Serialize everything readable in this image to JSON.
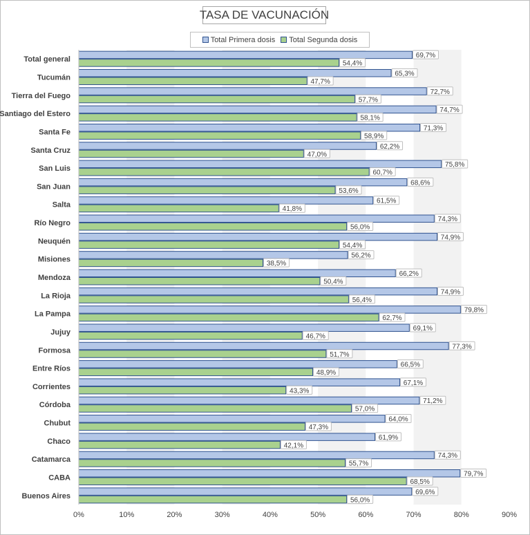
{
  "chart_data": {
    "type": "bar",
    "orientation": "horizontal",
    "title": "TASA DE VACUNACIÓN",
    "categories": [
      "Total general",
      "Tucumán",
      "Tierra del Fuego",
      "Santiago del Estero",
      "Santa Fe",
      "Santa Cruz",
      "San Luis",
      "San Juan",
      "Salta",
      "Río Negro",
      "Neuquén",
      "Misiones",
      "Mendoza",
      "La Rioja",
      "La Pampa",
      "Jujuy",
      "Formosa",
      "Entre Ríos",
      "Corrientes",
      "Córdoba",
      "Chubut",
      "Chaco",
      "Catamarca",
      "CABA",
      "Buenos Aires"
    ],
    "series": [
      {
        "name": "Total Primera dosis",
        "color": "#b4c7e7",
        "border": "#2f528f",
        "values": [
          69.7,
          65.3,
          72.7,
          74.7,
          71.3,
          62.2,
          75.8,
          68.6,
          61.5,
          74.3,
          74.9,
          56.2,
          66.2,
          74.9,
          79.8,
          69.1,
          77.3,
          66.5,
          67.1,
          71.2,
          64.0,
          61.9,
          74.3,
          79.7,
          69.6
        ],
        "labels": [
          "69,7%",
          "65,3%",
          "72,7%",
          "74,7%",
          "71,3%",
          "62,2%",
          "75,8%",
          "68,6%",
          "61,5%",
          "74,3%",
          "74,9%",
          "56,2%",
          "66,2%",
          "74,9%",
          "79,8%",
          "69,1%",
          "77,3%",
          "66,5%",
          "67,1%",
          "71,2%",
          "64,0%",
          "61,9%",
          "74,3%",
          "79,7%",
          "69,6%"
        ]
      },
      {
        "name": "Total Segunda dosis",
        "color": "#a9d18e",
        "border": "#2f528f",
        "values": [
          54.4,
          47.7,
          57.7,
          58.1,
          58.9,
          47.0,
          60.7,
          53.6,
          41.8,
          56.0,
          54.4,
          38.5,
          50.4,
          56.4,
          62.7,
          46.7,
          51.7,
          48.9,
          43.3,
          57.0,
          47.3,
          42.1,
          55.7,
          68.5,
          56.0
        ],
        "labels": [
          "54,4%",
          "47,7%",
          "57,7%",
          "58,1%",
          "58,9%",
          "47,0%",
          "60,7%",
          "53,6%",
          "41,8%",
          "56,0%",
          "54,4%",
          "38,5%",
          "50,4%",
          "56,4%",
          "62,7%",
          "46,7%",
          "51,7%",
          "48,9%",
          "43,3%",
          "57,0%",
          "47,3%",
          "42,1%",
          "55,7%",
          "68,5%",
          "56,0%"
        ]
      }
    ],
    "xlim": [
      0,
      90
    ],
    "xticks": [
      0,
      10,
      20,
      30,
      40,
      50,
      60,
      70,
      80,
      90
    ],
    "xtick_labels": [
      "0%",
      "10%",
      "20%",
      "30%",
      "40%",
      "50%",
      "60%",
      "70%",
      "80%",
      "90%"
    ],
    "grid": "vertical-bands",
    "legend_position": "top"
  }
}
